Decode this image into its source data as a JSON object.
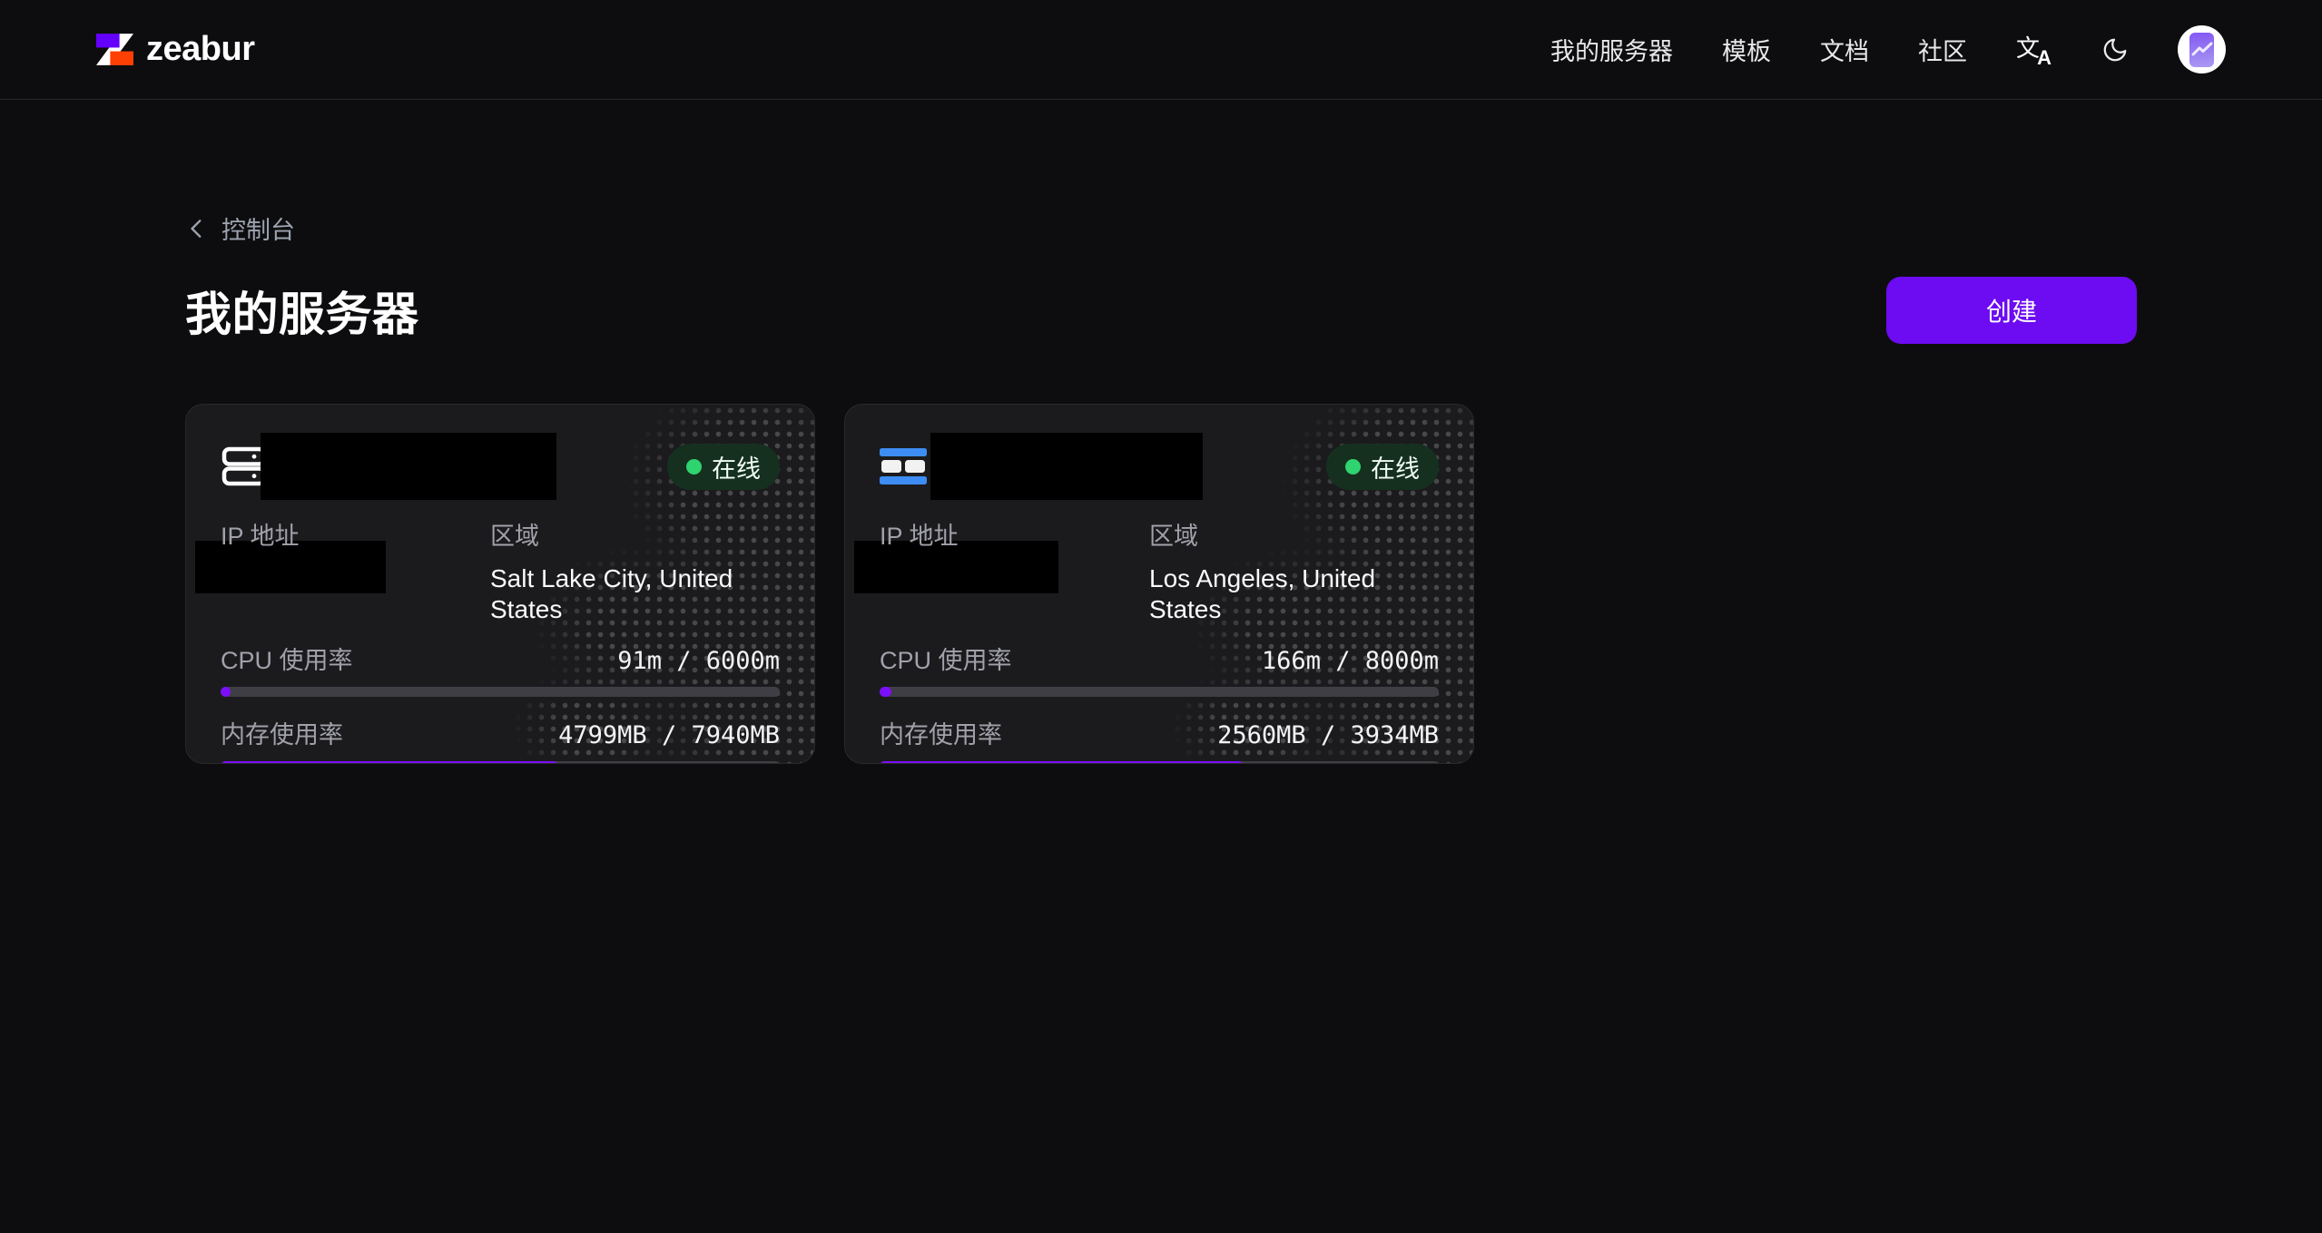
{
  "brand": {
    "name": "zeabur"
  },
  "nav": {
    "items": [
      {
        "label": "我的服务器"
      },
      {
        "label": "模板"
      },
      {
        "label": "文档"
      },
      {
        "label": "社区"
      }
    ],
    "icons": {
      "language": {
        "glyph_main": "文",
        "glyph_sub": "A"
      },
      "theme": "moon-crescent",
      "avatar": "chart-zigzag-purple"
    }
  },
  "breadcrumb": {
    "back_icon": "chevron-left",
    "label": "控制台"
  },
  "page": {
    "title": "我的服务器",
    "create_button": "创建"
  },
  "servers": [
    {
      "icon": "server-rack-outline",
      "name_redacted": true,
      "status": "在线",
      "ip_label": "IP 地址",
      "ip_redacted": true,
      "region_label": "区域",
      "region": "Salt Lake City, United States",
      "cpu_label": "CPU 使用率",
      "cpu_text": "91m / 6000m",
      "cpu_used_m": 91,
      "cpu_total_m": 6000,
      "cpu_percent": 1.5,
      "mem_label": "内存使用率",
      "mem_text": "4799MB / 7940MB",
      "mem_used_mb": 4799,
      "mem_total_mb": 7940,
      "mem_percent": 60.4
    },
    {
      "icon": "server-stack-blue",
      "name_redacted": true,
      "status": "在线",
      "ip_label": "IP 地址",
      "ip_redacted": true,
      "region_label": "区域",
      "region": "Los Angeles, United States",
      "cpu_label": "CPU 使用率",
      "cpu_text": "166m / 8000m",
      "cpu_used_m": 166,
      "cpu_total_m": 8000,
      "cpu_percent": 2.1,
      "mem_label": "内存使用率",
      "mem_text": "2560MB / 3934MB",
      "mem_used_mb": 2560,
      "mem_total_mb": 3934,
      "mem_percent": 65.1
    }
  ],
  "colors": {
    "accent_button": "#6d0bf2",
    "progress_fill": "#7c0efb",
    "progress_track": "#3f3e44",
    "status_green_dot": "#2fd36f",
    "status_badge_bg": "#16301f",
    "card_bg": "#1b1b1e",
    "page_bg": "#0d0d0f",
    "logo_purple": "#6300ff",
    "logo_orange": "#ff4005"
  }
}
